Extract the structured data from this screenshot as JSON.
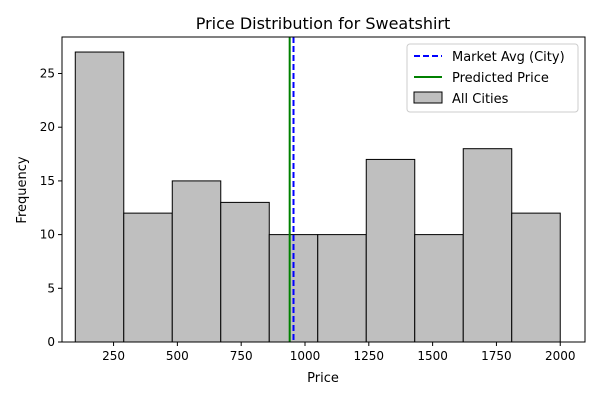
{
  "chart_data": {
    "type": "bar",
    "title": "Price Distribution for Sweatshirt",
    "xlabel": "Price",
    "ylabel": "Frequency",
    "xlim": [
      48,
      2097
    ],
    "ylim": [
      0,
      28.4
    ],
    "xticks": [
      250,
      500,
      750,
      1000,
      1250,
      1500,
      1750,
      2000
    ],
    "yticks": [
      0,
      5,
      10,
      15,
      20,
      25
    ],
    "bin_edges": [
      100,
      290,
      480,
      670,
      860,
      1050,
      1240,
      1430,
      1620,
      1810,
      2000
    ],
    "values": [
      27,
      12,
      15,
      13,
      10,
      10,
      17,
      10,
      18,
      12
    ],
    "market_avg_city": 955,
    "predicted_price": 940,
    "grid": false,
    "legend_position": "top-right",
    "legend": [
      {
        "label": "Market Avg (City)",
        "kind": "dashed-line",
        "color": "#0000ff"
      },
      {
        "label": "Predicted Price",
        "kind": "line",
        "color": "#008000"
      },
      {
        "label": "All Cities",
        "kind": "patch",
        "color": "#bfbfbf"
      }
    ],
    "colors": {
      "bars": "#bfbfbf",
      "bar_edge": "#000000",
      "market_avg": "#0000ff",
      "predicted": "#008000"
    }
  }
}
